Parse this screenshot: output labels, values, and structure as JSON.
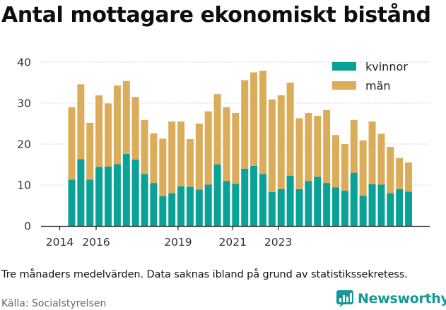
{
  "title": "Antal mottagare ekonomiskt bistånd",
  "note": "Tre månaders medelvärden. Data saknas ibland på grund av statistikssekretess.",
  "source": "Källa: Socialstyrelsen",
  "logo": {
    "text": "Newsworthy",
    "icon": "newsworthy-chart-icon",
    "color": "#139996"
  },
  "chart_data": {
    "type": "bar",
    "stacked": true,
    "x_ticks": [
      "2014",
      "2016",
      "2019",
      "2021",
      "2023"
    ],
    "x_tick_positions": [
      0,
      4,
      13,
      19,
      24
    ],
    "ylim": [
      0,
      40
    ],
    "yticks": [
      "0",
      "10",
      "20",
      "30",
      "40"
    ],
    "grid": "horizontal",
    "legend_position": "top-right",
    "series": [
      {
        "name": "kvinnor",
        "color": "#0aa196",
        "values": [
          11.3,
          16.3,
          11.3,
          14.4,
          14.5,
          15.1,
          17.6,
          16.2,
          12.7,
          10.5,
          7.3,
          8.0,
          9.7,
          9.6,
          8.9,
          10.1,
          15.0,
          11.0,
          10.3,
          14.0,
          14.7,
          12.7,
          8.3,
          9.0,
          12.3,
          9.0,
          11.0,
          12.0,
          10.5,
          9.4,
          8.6,
          13.0,
          7.4,
          10.2,
          10.1,
          8.0,
          9.0,
          8.4
        ]
      },
      {
        "name": "män",
        "color": "#dbac59",
        "values": [
          17.7,
          18.3,
          13.9,
          17.5,
          15.4,
          19.2,
          17.8,
          15.3,
          13.2,
          12.1,
          14.0,
          17.5,
          15.8,
          11.6,
          16.1,
          17.9,
          17.2,
          18.0,
          17.3,
          21.6,
          22.8,
          25.2,
          22.6,
          22.9,
          22.7,
          17.3,
          16.6,
          14.9,
          17.8,
          12.8,
          11.4,
          12.9,
          13.5,
          15.3,
          12.4,
          11.3,
          7.6,
          7.1
        ]
      }
    ]
  }
}
